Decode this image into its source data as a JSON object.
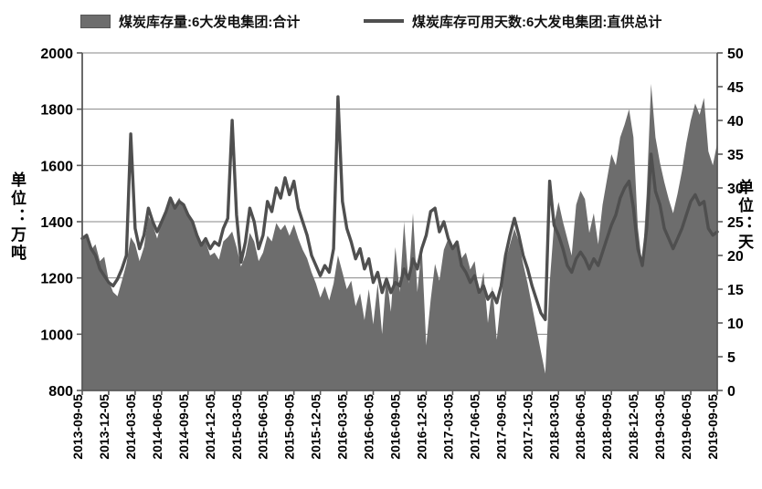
{
  "chart_data": {
    "type": "area+line dual-axis",
    "title": "",
    "grid": "horizontal",
    "legend_position": "top",
    "x_labels": [
      "2013-09-05",
      "2013-12-05",
      "2014-03-05",
      "2014-06-05",
      "2014-09-05",
      "2014-12-05",
      "2015-03-05",
      "2015-06-05",
      "2015-09-05",
      "2015-12-05",
      "2016-03-05",
      "2016-06-05",
      "2016-09-05",
      "2016-12-05",
      "2017-03-05",
      "2017-06-05",
      "2017-09-05",
      "2017-12-05",
      "2018-03-05",
      "2018-06-05",
      "2018-09-05",
      "2018-12-05",
      "2019-03-05",
      "2019-06-05",
      "2019-09-05"
    ],
    "points_per_tick": 6,
    "left_axis": {
      "title": "单位：万吨",
      "min": 800,
      "max": 2000,
      "step": 200,
      "ticks": [
        2000,
        1800,
        1600,
        1400,
        1200,
        1000,
        800
      ]
    },
    "right_axis": {
      "title": "单位：天",
      "min": 0,
      "max": 50,
      "step": 5,
      "ticks": [
        50,
        45,
        40,
        35,
        30,
        25,
        20,
        15,
        10,
        5,
        0
      ]
    },
    "series": [
      {
        "name": "煤炭库存量:6大发电集团:合计",
        "type": "area",
        "axis": "left",
        "color": "#6d6d6d",
        "values": [
          1330,
          1355,
          1300,
          1320,
          1260,
          1275,
          1190,
          1150,
          1135,
          1190,
          1250,
          1345,
          1320,
          1260,
          1310,
          1420,
          1390,
          1340,
          1400,
          1440,
          1490,
          1460,
          1485,
          1450,
          1430,
          1390,
          1340,
          1310,
          1330,
          1280,
          1290,
          1265,
          1330,
          1345,
          1365,
          1310,
          1240,
          1280,
          1360,
          1330,
          1260,
          1290,
          1350,
          1330,
          1395,
          1370,
          1390,
          1350,
          1390,
          1340,
          1300,
          1270,
          1220,
          1180,
          1130,
          1170,
          1120,
          1180,
          1280,
          1220,
          1160,
          1190,
          1100,
          1145,
          1050,
          1160,
          1035,
          1180,
          1000,
          1210,
          1080,
          1310,
          1150,
          1400,
          1180,
          1430,
          1150,
          1310,
          960,
          1120,
          1250,
          1190,
          1300,
          1340,
          1310,
          1330,
          1270,
          1290,
          1230,
          1260,
          1140,
          1220,
          1040,
          1170,
          980,
          1130,
          1260,
          1320,
          1375,
          1330,
          1250,
          1180,
          1100,
          1020,
          940,
          860,
          1180,
          1390,
          1470,
          1400,
          1340,
          1280,
          1460,
          1510,
          1480,
          1360,
          1430,
          1320,
          1460,
          1550,
          1640,
          1600,
          1700,
          1745,
          1800,
          1700,
          1380,
          1240,
          1500,
          1890,
          1700,
          1610,
          1540,
          1480,
          1430,
          1500,
          1580,
          1680,
          1760,
          1820,
          1780,
          1840,
          1650,
          1600,
          1680
        ]
      },
      {
        "name": "煤炭库存可用天数:6大发电集团:直供总计",
        "type": "line",
        "axis": "right",
        "color": "#4f4f4f",
        "values": [
          22.5,
          23,
          21,
          20,
          18,
          17,
          16,
          15.5,
          16.5,
          18,
          20,
          38,
          24,
          21,
          23,
          27,
          25,
          23.5,
          25,
          26.5,
          28.5,
          27,
          28,
          27.5,
          26,
          25,
          23,
          21.5,
          22.5,
          21,
          22,
          21.5,
          24,
          25.5,
          40,
          26,
          19,
          22,
          27,
          25,
          21,
          23,
          28,
          26.5,
          30,
          28.5,
          31.5,
          29,
          31,
          27,
          25,
          23,
          20,
          18.5,
          17,
          18.5,
          17.5,
          21,
          43.5,
          28,
          24,
          22,
          19.5,
          21,
          18,
          19.5,
          16,
          17.5,
          14.5,
          16.5,
          14.5,
          16,
          15.5,
          18,
          16.5,
          19.5,
          18,
          21,
          23,
          26.5,
          27,
          23.5,
          25,
          22.5,
          21,
          22,
          18.5,
          17.5,
          16,
          17,
          14.5,
          15.5,
          13.5,
          14.5,
          13,
          15.5,
          20,
          23,
          25.5,
          23,
          20,
          18,
          15.5,
          13.5,
          11.5,
          10.5,
          31,
          24.5,
          23,
          21,
          18.5,
          17.5,
          19.5,
          20.5,
          19.5,
          18,
          19.5,
          18.5,
          20.5,
          22.5,
          24.5,
          26,
          28.5,
          30,
          31,
          27,
          21,
          18.5,
          24,
          35,
          29.5,
          27.5,
          24,
          22.5,
          21,
          22.5,
          24,
          26,
          28,
          29,
          27.5,
          28,
          24,
          23,
          23.5
        ]
      }
    ],
    "colors": {
      "area": "#6d6d6d",
      "line": "#4f4f4f",
      "grid": "#878787",
      "axis": "#595959",
      "text": "#000000"
    }
  }
}
